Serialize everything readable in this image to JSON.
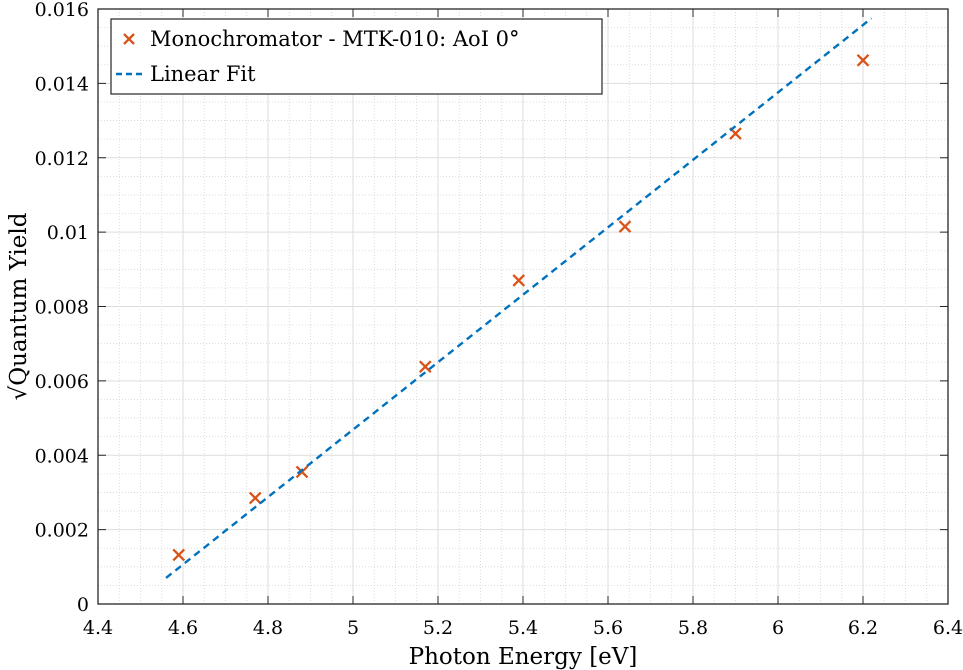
{
  "chart_data": {
    "type": "scatter",
    "xlabel": "Photon Energy [eV]",
    "ylabel": "√Quantum Yield",
    "xlim": [
      4.4,
      6.4
    ],
    "ylim": [
      0,
      0.016
    ],
    "xticks": [
      4.4,
      4.6,
      4.8,
      5,
      5.2,
      5.4,
      5.6,
      5.8,
      6,
      6.2,
      6.4
    ],
    "xtick_labels": [
      "4.4",
      "4.6",
      "4.8",
      "5",
      "5.2",
      "5.4",
      "5.6",
      "5.8",
      "6",
      "6.2",
      "6.4"
    ],
    "yticks": [
      0,
      0.002,
      0.004,
      0.006,
      0.008,
      0.01,
      0.012,
      0.014,
      0.016
    ],
    "ytick_labels": [
      "0",
      "0.002",
      "0.004",
      "0.006",
      "0.008",
      "0.01",
      "0.012",
      "0.014",
      "0.016"
    ],
    "grid": true,
    "minor_grid": true,
    "legend_position": "top-left",
    "series": [
      {
        "name": "Monochromator - MTK-010:  AoI 0°",
        "kind": "marker",
        "marker": "x",
        "color": "#D95319",
        "x": [
          4.59,
          4.77,
          4.88,
          5.17,
          5.39,
          5.64,
          5.9,
          6.2
        ],
        "y": [
          0.00132,
          0.00285,
          0.00355,
          0.00638,
          0.0087,
          0.01015,
          0.01265,
          0.01462
        ]
      },
      {
        "name": "Linear Fit",
        "kind": "line",
        "linestyle": "dashed",
        "color": "#0072BD",
        "x": [
          4.56,
          6.22
        ],
        "y": [
          0.0007,
          0.01575
        ]
      }
    ]
  }
}
